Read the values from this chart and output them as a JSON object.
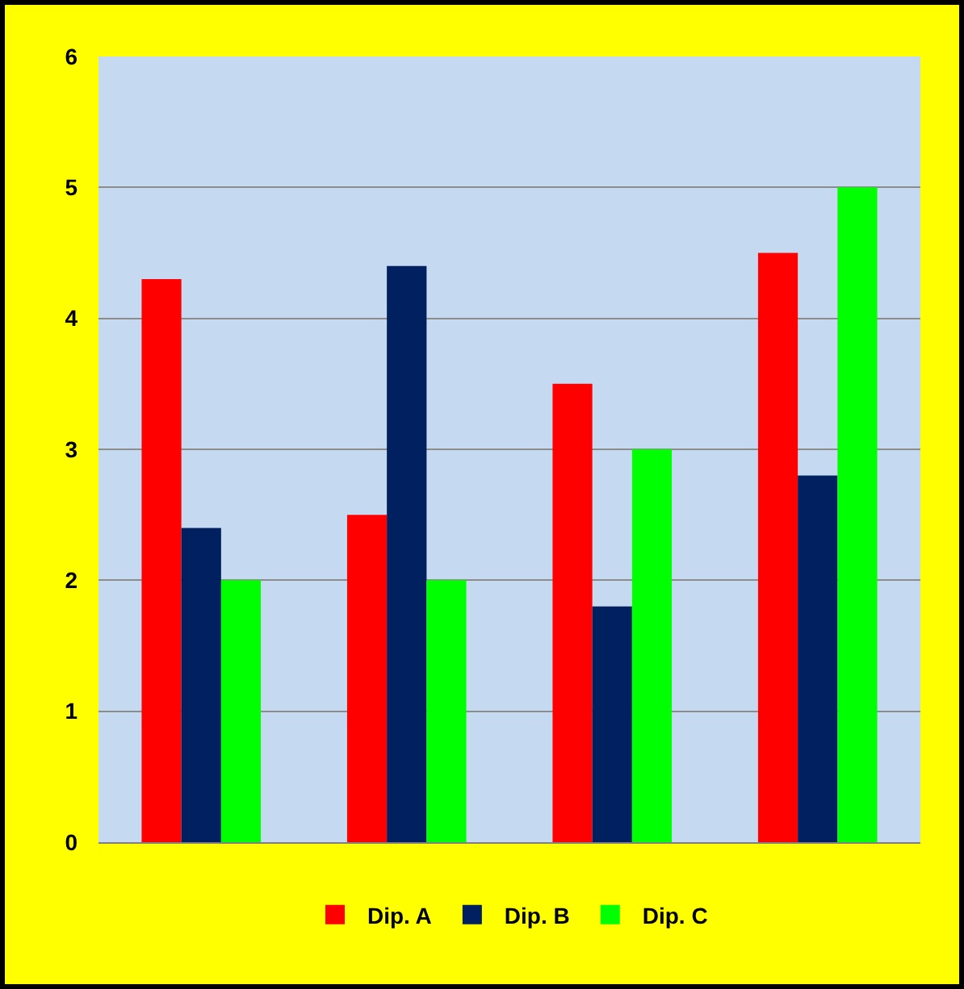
{
  "chart_data": {
    "type": "bar",
    "categories": [
      null,
      null,
      null,
      null
    ],
    "series": [
      {
        "name": "Dip. A",
        "color": "#ff0000",
        "values": [
          4.3,
          2.5,
          3.5,
          4.5
        ]
      },
      {
        "name": "Dip. B",
        "color": "#002060",
        "values": [
          2.4,
          4.4,
          1.8,
          2.8
        ]
      },
      {
        "name": "Dip. C",
        "color": "#00ff00",
        "values": [
          2,
          2,
          3,
          5
        ]
      }
    ],
    "ylim": [
      0,
      6
    ],
    "yticks": [
      0,
      1,
      2,
      3,
      4,
      5,
      6
    ],
    "grid": "y",
    "legend": "bottom"
  }
}
